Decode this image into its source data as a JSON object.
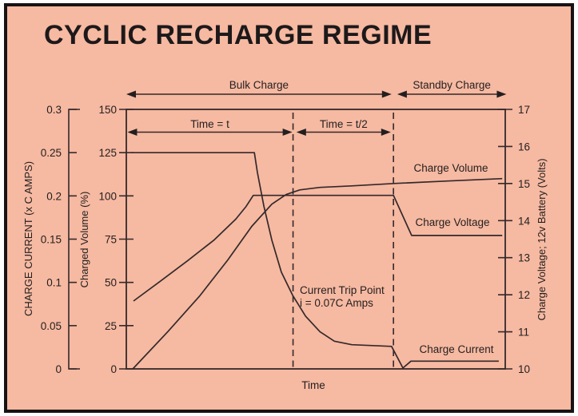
{
  "title": "CYCLIC RECHARGE REGIME",
  "colors": {
    "background": "#f6b9a1",
    "border": "#171214",
    "ink": "#231f20",
    "curve": "#33292b"
  },
  "chart_data": {
    "type": "line",
    "title": "CYCLIC RECHARGE REGIME",
    "xlabel": "Time",
    "x_range": [
      0,
      100
    ],
    "grid": false,
    "axes": {
      "current": {
        "label": "CHARGE CURRENT (x C AMPS)",
        "range": [
          0,
          0.3
        ],
        "tick_labels": [
          "0",
          "0.05",
          "0.1",
          "0.15",
          "0.2",
          "0.25",
          "0.3"
        ],
        "tick_values": [
          0,
          0.05,
          0.1,
          0.15,
          0.2,
          0.25,
          0.3
        ],
        "side": "outer-left"
      },
      "volume": {
        "label": "Charged Volume (%)",
        "range": [
          0,
          150
        ],
        "tick_labels": [
          "0",
          "25",
          "50",
          "75",
          "100",
          "125",
          "150"
        ],
        "tick_values": [
          0,
          25,
          50,
          75,
          100,
          125,
          150
        ],
        "side": "left"
      },
      "voltage": {
        "label": "Charge Voltage; 12v Battery (Volts)",
        "range": [
          10,
          17
        ],
        "tick_labels": [
          "10",
          "11",
          "12",
          "13",
          "14",
          "15",
          "16",
          "17"
        ],
        "tick_values": [
          10,
          11,
          12,
          13,
          14,
          15,
          16,
          17
        ],
        "side": "right"
      }
    },
    "series": [
      {
        "name": "Charge Volume",
        "axis": "volume",
        "points": [
          [
            1.7,
            0
          ],
          [
            11,
            21.6
          ],
          [
            19.4,
            42.3
          ],
          [
            26.8,
            63
          ],
          [
            33.1,
            82.4
          ],
          [
            38.4,
            95.2
          ],
          [
            42.2,
            100.8
          ],
          [
            45.8,
            103.5
          ],
          [
            51.1,
            104.9
          ],
          [
            59.5,
            105.8
          ],
          [
            71.1,
            107.2
          ],
          [
            84.8,
            108.6
          ],
          [
            99.2,
            110
          ]
        ]
      },
      {
        "name": "Charge Voltage",
        "axis": "voltage",
        "points": [
          [
            1.9,
            11.83
          ],
          [
            8.9,
            12.36
          ],
          [
            16.2,
            12.92
          ],
          [
            23.2,
            13.48
          ],
          [
            28.9,
            14.04
          ],
          [
            31.6,
            14.38
          ],
          [
            33.5,
            14.68
          ],
          [
            70.5,
            14.68
          ],
          [
            75.3,
            13.6
          ],
          [
            99.2,
            13.6
          ]
        ]
      },
      {
        "name": "Charge Current",
        "axis": "current",
        "points": [
          [
            1.3,
            0.25
          ],
          [
            33.8,
            0.25
          ],
          [
            34.6,
            0.227
          ],
          [
            36.3,
            0.188
          ],
          [
            38.4,
            0.149
          ],
          [
            40.9,
            0.112
          ],
          [
            43.9,
            0.085
          ],
          [
            47.3,
            0.061
          ],
          [
            51.1,
            0.043
          ],
          [
            54.9,
            0.032
          ],
          [
            59.5,
            0.028
          ],
          [
            70,
            0.026
          ],
          [
            73,
            0.001
          ],
          [
            75.1,
            0.009
          ],
          [
            98.3,
            0.009
          ]
        ]
      }
    ],
    "dashed_lines_t": [
      44.0,
      70.5
    ],
    "phase_spans": [
      {
        "label": "Bulk Charge",
        "from": 0,
        "to": 70
      },
      {
        "label": "Standby Charge",
        "from": 71.5,
        "to": 100.3
      }
    ],
    "time_spans": [
      {
        "label": "Time = t",
        "from": 0.3,
        "to": 43.8
      },
      {
        "label": "Time = t/2",
        "from": 44.9,
        "to": 69.8
      }
    ],
    "annotations": {
      "trip_point_line1": "Current Trip Point",
      "trip_point_line2": "i = 0.07C Amps"
    },
    "curve_labels": [
      "Charge Volume",
      "Charge Voltage",
      "Charge Current"
    ],
    "legend": "none"
  }
}
